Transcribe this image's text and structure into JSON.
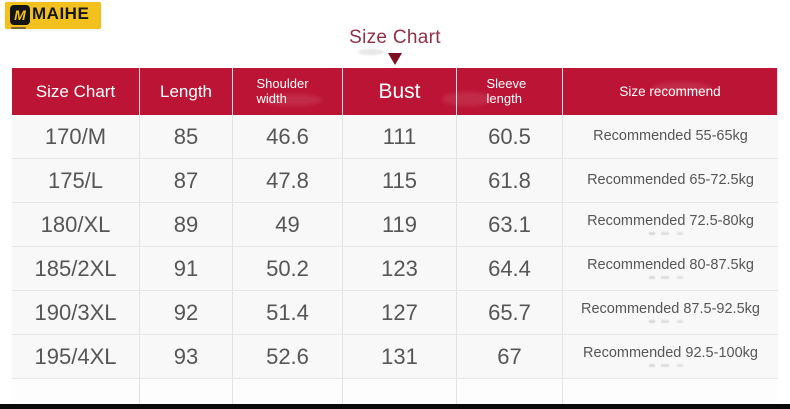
{
  "brand": {
    "initial": "M",
    "name": "MAIHE"
  },
  "title": "Size Chart",
  "colors": {
    "header_bg": "#bc1434",
    "title_text": "#8e3146",
    "arrow": "#7c1123",
    "brand_bg": "#f2c11d",
    "body_text": "#565656",
    "recommend_text": "#636363",
    "bottom_bar": "#0a0a0a"
  },
  "chart_data": {
    "type": "table",
    "title": "Size Chart",
    "columns": [
      "Size Chart",
      "Length",
      "Shoulder width",
      "Bust",
      "Sleeve length",
      "Size recommend"
    ],
    "rows": [
      {
        "size": "170/M",
        "length": "85",
        "shoulder": "46.6",
        "bust": "111",
        "sleeve": "60.5",
        "recommend": "Recommended 55-65kg"
      },
      {
        "size": "175/L",
        "length": "87",
        "shoulder": "47.8",
        "bust": "115",
        "sleeve": "61.8",
        "recommend": "Recommended 65-72.5kg"
      },
      {
        "size": "180/XL",
        "length": "89",
        "shoulder": "49",
        "bust": "119",
        "sleeve": "63.1",
        "recommend": "Recommended 72.5-80kg"
      },
      {
        "size": "185/2XL",
        "length": "91",
        "shoulder": "50.2",
        "bust": "123",
        "sleeve": "64.4",
        "recommend": "Recommended 80-87.5kg"
      },
      {
        "size": "190/3XL",
        "length": "92",
        "shoulder": "51.4",
        "bust": "127",
        "sleeve": "65.7",
        "recommend": "Recommended 87.5-92.5kg"
      },
      {
        "size": "195/4XL",
        "length": "93",
        "shoulder": "52.6",
        "bust": "131",
        "sleeve": "67",
        "recommend": "Recommended 92.5-100kg"
      }
    ],
    "header_texts": {
      "size": "Size Chart",
      "length": "Length",
      "shoulder": "Shoulder width",
      "bust": "Bust",
      "sleeve": "Sleeve length",
      "recommend": "Size recommend"
    }
  }
}
